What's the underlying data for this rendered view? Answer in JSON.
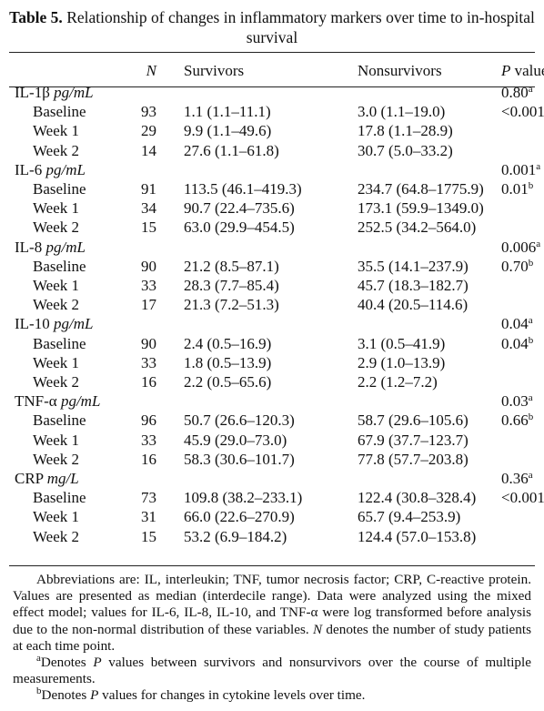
{
  "title": {
    "label": "Table 5.",
    "text": "Relationship of changes in inflammatory markers over time to in-hospital survival"
  },
  "header": {
    "n": "N",
    "survivors": "Survivors",
    "nonsurvivors": "Nonsurvivors",
    "p_symbol": "P",
    "p_word": "value"
  },
  "groups": [
    {
      "name": "IL-1β",
      "unit": "pg/mL",
      "p": "0.80",
      "p_sup": "a",
      "rows": [
        {
          "label": "Baseline",
          "n": "93",
          "survivors": "1.1 (1.1–11.1)",
          "nonsurvivors": "3.0 (1.1–19.0)",
          "p": "<0.001",
          "p_sup": "b"
        },
        {
          "label": "Week 1",
          "n": "29",
          "survivors": "9.9 (1.1–49.6)",
          "nonsurvivors": "17.8 (1.1–28.9)"
        },
        {
          "label": "Week 2",
          "n": "14",
          "survivors": "27.6 (1.1–61.8)",
          "nonsurvivors": "30.7 (5.0–33.2)"
        }
      ]
    },
    {
      "name": "IL-6",
      "unit": "pg/mL",
      "p": "0.001",
      "p_sup": "a",
      "rows": [
        {
          "label": "Baseline",
          "n": "91",
          "survivors": "113.5 (46.1–419.3)",
          "nonsurvivors": "234.7 (64.8–1775.9)",
          "p": "0.01",
          "p_sup": "b"
        },
        {
          "label": "Week 1",
          "n": "34",
          "survivors": "90.7 (22.4–735.6)",
          "nonsurvivors": "173.1 (59.9–1349.0)"
        },
        {
          "label": "Week 2",
          "n": "15",
          "survivors": "63.0 (29.9–454.5)",
          "nonsurvivors": "252.5 (34.2–564.0)"
        }
      ]
    },
    {
      "name": "IL-8",
      "unit": "pg/mL",
      "p": "0.006",
      "p_sup": "a",
      "rows": [
        {
          "label": "Baseline",
          "n": "90",
          "survivors": "21.2 (8.5–87.1)",
          "nonsurvivors": "35.5 (14.1–237.9)",
          "p": "0.70",
          "p_sup": "b"
        },
        {
          "label": "Week 1",
          "n": "33",
          "survivors": "28.3 (7.7–85.4)",
          "nonsurvivors": "45.7 (18.3–182.7)"
        },
        {
          "label": "Week 2",
          "n": "17",
          "survivors": "21.3 (7.2–51.3)",
          "nonsurvivors": "40.4 (20.5–114.6)"
        }
      ]
    },
    {
      "name": "IL-10",
      "unit": "pg/mL",
      "p": "0.04",
      "p_sup": "a",
      "rows": [
        {
          "label": "Baseline",
          "n": "90",
          "survivors": "2.4 (0.5–16.9)",
          "nonsurvivors": "3.1 (0.5–41.9)",
          "p": "0.04",
          "p_sup": "b"
        },
        {
          "label": "Week 1",
          "n": "33",
          "survivors": "1.8 (0.5–13.9)",
          "nonsurvivors": "2.9 (1.0–13.9)"
        },
        {
          "label": "Week 2",
          "n": "16",
          "survivors": "2.2 (0.5–65.6)",
          "nonsurvivors": "2.2 (1.2–7.2)"
        }
      ]
    },
    {
      "name": "TNF-α",
      "unit": "pg/mL",
      "p": "0.03",
      "p_sup": "a",
      "rows": [
        {
          "label": "Baseline",
          "n": "96",
          "survivors": "50.7 (26.6–120.3)",
          "nonsurvivors": "58.7 (29.6–105.6)",
          "p": "0.66",
          "p_sup": "b"
        },
        {
          "label": "Week 1",
          "n": "33",
          "survivors": "45.9 (29.0–73.0)",
          "nonsurvivors": "67.9 (37.7–123.7)"
        },
        {
          "label": "Week 2",
          "n": "16",
          "survivors": "58.3 (30.6–101.7)",
          "nonsurvivors": "77.8 (57.7–203.8)"
        }
      ]
    },
    {
      "name": "CRP",
      "unit": "mg/L",
      "p": "0.36",
      "p_sup": "a",
      "rows": [
        {
          "label": "Baseline",
          "n": "73",
          "survivors": "109.8 (38.2–233.1)",
          "nonsurvivors": "122.4 (30.8–328.4)",
          "p": "<0.001",
          "p_sup": "b"
        },
        {
          "label": "Week 1",
          "n": "31",
          "survivors": "66.0 (22.6–270.9)",
          "nonsurvivors": "65.7 (9.4–253.9)"
        },
        {
          "label": "Week 2",
          "n": "15",
          "survivors": "53.2 (6.9–184.2)",
          "nonsurvivors": "124.4 (57.0–153.8)"
        }
      ]
    }
  ],
  "footnotes": [
    {
      "parts": [
        {
          "text": "Abbreviations are: IL, interleukin; TNF, tumor necrosis factor; CRP, C-reactive protein. Values are presented as median (interdecile range). Data were analyzed using the mixed effect model; values for IL-6, IL-8, IL-10, and TNF-α were log transformed before analysis due to the non-normal distribution of these variables. "
        },
        {
          "text": "N",
          "italic": true
        },
        {
          "text": " denotes the number of study patients at each time point."
        }
      ]
    },
    {
      "sup": "a",
      "parts": [
        {
          "text": "Denotes "
        },
        {
          "text": "P",
          "italic": true
        },
        {
          "text": " values between survivors and nonsurvivors over the course of multiple measurements."
        }
      ]
    },
    {
      "sup": "b",
      "parts": [
        {
          "text": "Denotes "
        },
        {
          "text": "P",
          "italic": true
        },
        {
          "text": " values for changes in cytokine levels over time."
        }
      ]
    }
  ]
}
